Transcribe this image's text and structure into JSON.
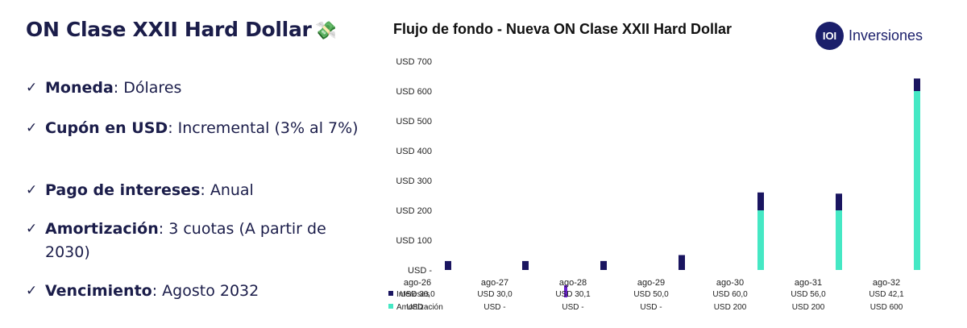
{
  "left": {
    "title": "ON Clase XXII Hard Dollar",
    "title_icon": "money-with-wings-icon",
    "title_emoji": "💸",
    "check_glyph": "✓",
    "bullets": [
      {
        "key": "Moneda",
        "sep": ":",
        "value": " Dólares"
      },
      {
        "key": "Cupón  en USD",
        "sep": ":",
        "value": "  Incremental (3% al 7%)"
      },
      {
        "key": "Pago de intereses",
        "sep": ":",
        "value": " Anual"
      },
      {
        "key": "Amortización",
        "sep": ":",
        "value": " 3 cuotas (A partir de 2030)"
      },
      {
        "key": "Vencimiento",
        "sep": ":",
        "value": " Agosto 2032"
      }
    ]
  },
  "logo": {
    "mark": "IOI",
    "text": "Inversiones"
  },
  "colors": {
    "intereses": "#1a1560",
    "amortizacion": "#45e8c4",
    "stray": "#6a1fd1"
  },
  "chart_data": {
    "type": "bar",
    "stacked": true,
    "title": "Flujo de fondo - Nueva ON Clase XXII Hard Dollar",
    "categories": [
      "ago-26",
      "ago-27",
      "ago-28",
      "ago-29",
      "ago-30",
      "ago-31",
      "ago-32"
    ],
    "series": [
      {
        "name": "Amortización",
        "values": [
          0,
          0,
          0,
          0,
          200,
          200,
          600
        ]
      },
      {
        "name": "Intereses",
        "values": [
          30.0,
          30.0,
          30.1,
          50.0,
          60.0,
          56.0,
          42.1
        ]
      }
    ],
    "ylim": [
      0,
      700
    ],
    "yticks": [
      "USD -",
      "USD 100",
      "USD 200",
      "USD 300",
      "USD 400",
      "USD 500",
      "USD 600",
      "USD 700"
    ],
    "table": {
      "Intereses": [
        "USD 30,0",
        "USD 30,0",
        "USD 30,1",
        "USD 50,0",
        "USD 60,0",
        "USD 56,0",
        "USD 42,1"
      ],
      "Amortización": [
        "USD -",
        "USD -",
        "USD -",
        "USD -",
        "USD 200",
        "USD 200",
        "USD 600"
      ]
    },
    "grid": false,
    "legend": "bottom-left table"
  }
}
